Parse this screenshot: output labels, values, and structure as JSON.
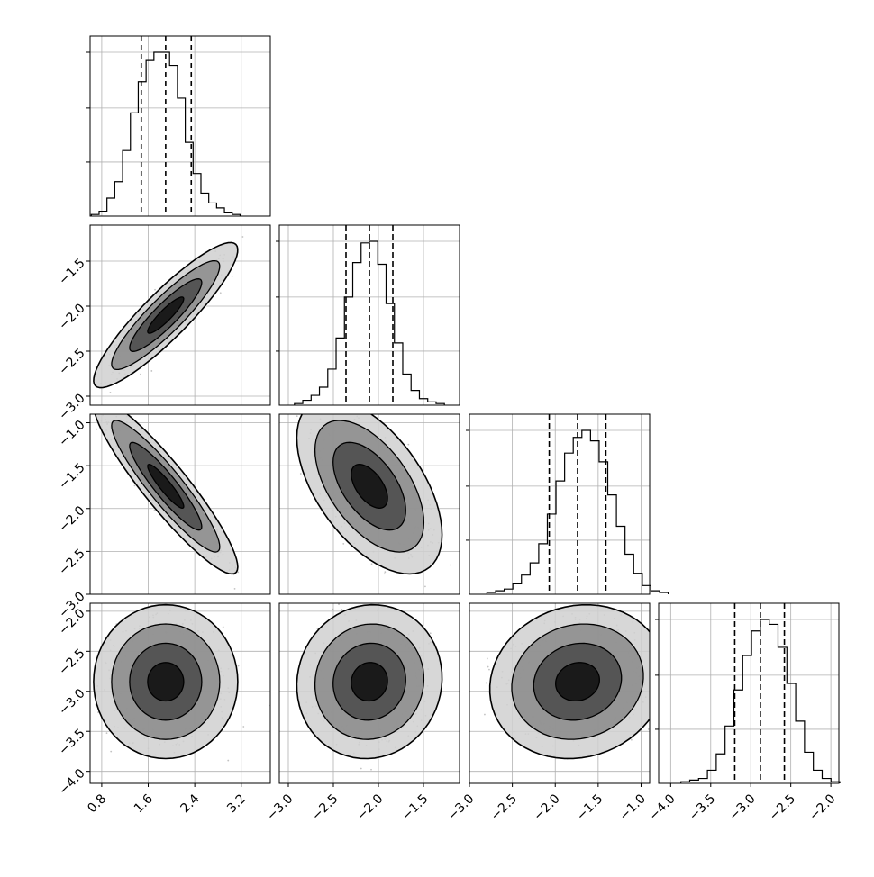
{
  "chart_data": {
    "type": "corner",
    "grid": true,
    "colors": {
      "line": "#000000",
      "grid": "#b0b0b0",
      "scatter": "#9a9a9a",
      "histogram": "#000000"
    },
    "parameters": [
      {
        "index": 0,
        "range": [
          0.6,
          3.7
        ],
        "ticks": [
          "0.8",
          "1.6",
          "2.4",
          "3.2"
        ],
        "tick_values": [
          0.8,
          1.6,
          2.4,
          3.2
        ],
        "quantiles": [
          1.48,
          1.9,
          2.34
        ],
        "center": 1.9,
        "spread": 0.4
      },
      {
        "index": 1,
        "range": [
          -3.1,
          -1.1
        ],
        "ticks": [
          "−3.0",
          "−2.5",
          "−2.0",
          "−1.5"
        ],
        "tick_values": [
          -3.0,
          -2.5,
          -2.0,
          -1.5
        ],
        "quantiles": [
          -2.36,
          -2.1,
          -1.84
        ],
        "center": -2.1,
        "spread": 0.26
      },
      {
        "index": 2,
        "range": [
          -3.0,
          -0.9
        ],
        "ticks": [
          "−3.0",
          "−2.5",
          "−2.0",
          "−1.5",
          "−1.0"
        ],
        "tick_values": [
          -3.0,
          -2.5,
          -2.0,
          -1.5,
          -1.0
        ],
        "quantiles": [
          -2.07,
          -1.74,
          -1.41
        ],
        "center": -1.74,
        "spread": 0.33
      },
      {
        "index": 3,
        "range": [
          -4.15,
          -1.9
        ],
        "ticks": [
          "−4.0",
          "−3.5",
          "−3.0",
          "−2.5",
          "−2.0"
        ],
        "tick_values": [
          -4.0,
          -3.5,
          -3.0,
          -2.5,
          -2.0
        ],
        "quantiles": [
          -3.2,
          -2.88,
          -2.58
        ],
        "center": -2.88,
        "spread": 0.31
      }
    ],
    "histograms": [
      {
        "param": 0,
        "counts": [
          1,
          3,
          11,
          21,
          40,
          63,
          82,
          95,
          100,
          100,
          92,
          72,
          45,
          26,
          14,
          8,
          5,
          2,
          1
        ]
      },
      {
        "param": 1,
        "counts": [
          1,
          3,
          6,
          11,
          22,
          41,
          66,
          87,
          99,
          100,
          86,
          62,
          38,
          19,
          9,
          4,
          2,
          1
        ]
      },
      {
        "param": 2,
        "counts": [
          1,
          2,
          3,
          6,
          11,
          18,
          29,
          46,
          65,
          81,
          90,
          94,
          88,
          76,
          57,
          39,
          23,
          12,
          5,
          2,
          1
        ]
      },
      {
        "param": 3,
        "counts": [
          1,
          2,
          3,
          8,
          18,
          35,
          57,
          78,
          93,
          100,
          97,
          83,
          61,
          38,
          19,
          8,
          3,
          1
        ]
      }
    ],
    "pairs": [
      {
        "x": 0,
        "y": 1,
        "correlation": 0.9
      },
      {
        "x": 0,
        "y": 2,
        "correlation": -0.92
      },
      {
        "x": 1,
        "y": 2,
        "correlation": -0.55
      },
      {
        "x": 0,
        "y": 3,
        "correlation": 0.0
      },
      {
        "x": 1,
        "y": 3,
        "correlation": 0.05
      },
      {
        "x": 2,
        "y": 3,
        "correlation": 0.1
      }
    ],
    "contour_levels_sigma": [
      0.5,
      1.0,
      1.5,
      2.0
    ]
  }
}
